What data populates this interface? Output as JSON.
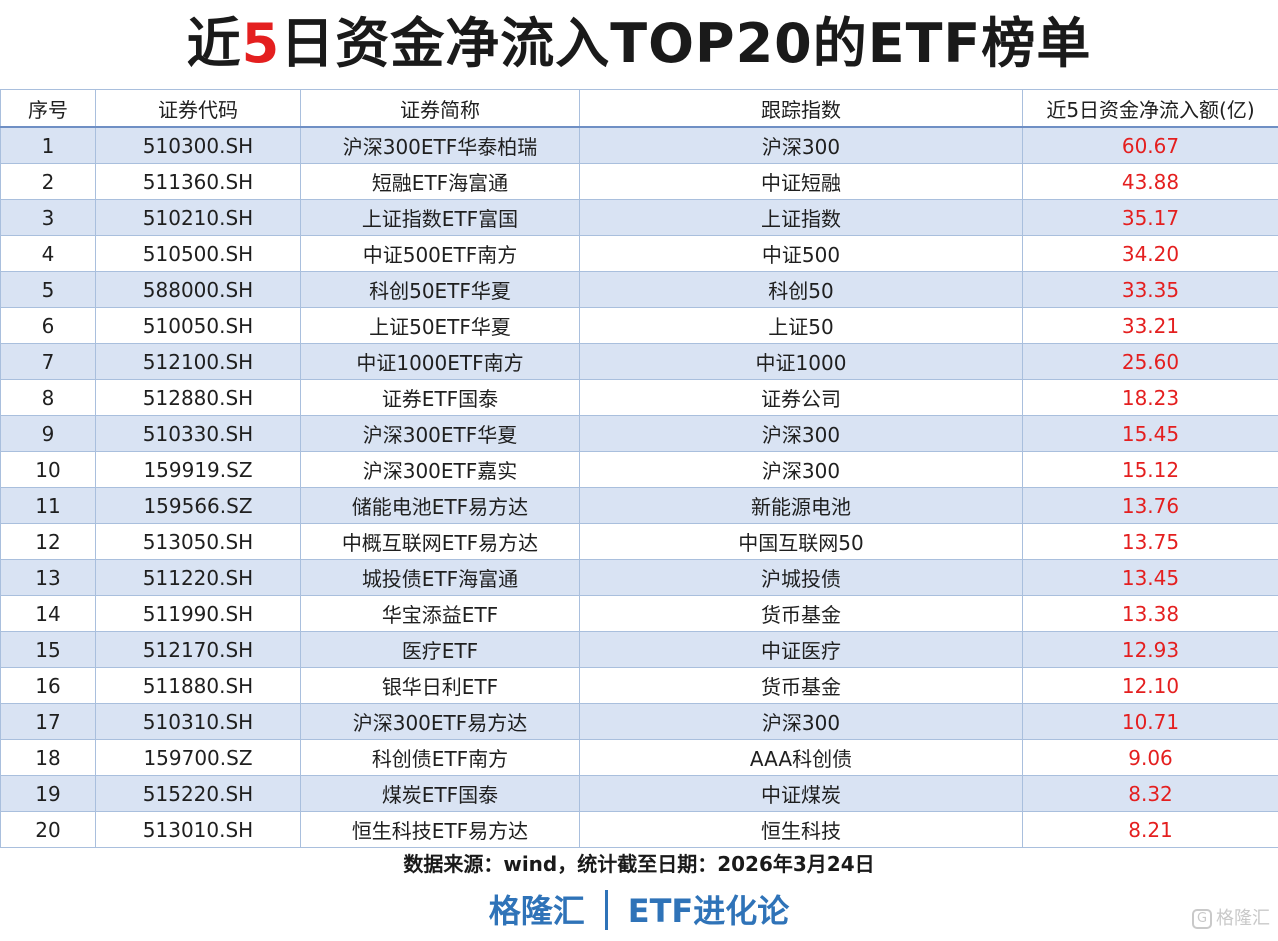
{
  "title": {
    "pre": "近",
    "highlight": "5",
    "post": "日资金净流入TOP20的ETF榜单"
  },
  "colors": {
    "highlight": "#e41f1f",
    "row_stripe": "#d9e3f3",
    "brand": "#2f73b8",
    "flow_value": "#e41f1f"
  },
  "chart_data": {
    "type": "table",
    "columns": [
      "序号",
      "证券代码",
      "证券简称",
      "跟踪指数",
      "近5日资金净流入额(亿)"
    ],
    "rows": [
      [
        "1",
        "510300.SH",
        "沪深300ETF华泰柏瑞",
        "沪深300",
        "60.67"
      ],
      [
        "2",
        "511360.SH",
        "短融ETF海富通",
        "中证短融",
        "43.88"
      ],
      [
        "3",
        "510210.SH",
        "上证指数ETF富国",
        "上证指数",
        "35.17"
      ],
      [
        "4",
        "510500.SH",
        "中证500ETF南方",
        "中证500",
        "34.20"
      ],
      [
        "5",
        "588000.SH",
        "科创50ETF华夏",
        "科创50",
        "33.35"
      ],
      [
        "6",
        "510050.SH",
        "上证50ETF华夏",
        "上证50",
        "33.21"
      ],
      [
        "7",
        "512100.SH",
        "中证1000ETF南方",
        "中证1000",
        "25.60"
      ],
      [
        "8",
        "512880.SH",
        "证券ETF国泰",
        "证券公司",
        "18.23"
      ],
      [
        "9",
        "510330.SH",
        "沪深300ETF华夏",
        "沪深300",
        "15.45"
      ],
      [
        "10",
        "159919.SZ",
        "沪深300ETF嘉实",
        "沪深300",
        "15.12"
      ],
      [
        "11",
        "159566.SZ",
        "储能电池ETF易方达",
        "新能源电池",
        "13.76"
      ],
      [
        "12",
        "513050.SH",
        "中概互联网ETF易方达",
        "中国互联网50",
        "13.75"
      ],
      [
        "13",
        "511220.SH",
        "城投债ETF海富通",
        "沪城投债",
        "13.45"
      ],
      [
        "14",
        "511990.SH",
        "华宝添益ETF",
        "货币基金",
        "13.38"
      ],
      [
        "15",
        "512170.SH",
        "医疗ETF",
        "中证医疗",
        "12.93"
      ],
      [
        "16",
        "511880.SH",
        "银华日利ETF",
        "货币基金",
        "12.10"
      ],
      [
        "17",
        "510310.SH",
        "沪深300ETF易方达",
        "沪深300",
        "10.71"
      ],
      [
        "18",
        "159700.SZ",
        "科创债ETF南方",
        "AAA科创债",
        "9.06"
      ],
      [
        "19",
        "515220.SH",
        "煤炭ETF国泰",
        "中证煤炭",
        "8.32"
      ],
      [
        "20",
        "513010.SH",
        "恒生科技ETF易方达",
        "恒生科技",
        "8.21"
      ]
    ]
  },
  "footer": {
    "source": "数据来源：wind，统计截至日期：2026年3月24日",
    "brand_left": "格隆汇",
    "brand_right": "ETF进化论"
  },
  "watermark": {
    "icon": "gelonghui-logo-icon",
    "text": "格隆汇"
  }
}
